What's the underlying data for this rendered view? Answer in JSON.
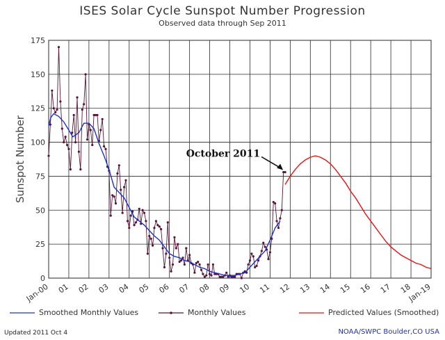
{
  "chart_data": {
    "type": "line",
    "title": "ISES Solar Cycle Sunspot Number Progression",
    "subtitle": "Observed data through Sep 2011",
    "ylabel": "Sunspot Number",
    "xlabel": "",
    "xlim": [
      2000.0,
      2019.0
    ],
    "ylim": [
      0,
      175
    ],
    "x_ticks": [
      {
        "pos": 2000.0,
        "label": "Jan-00"
      },
      {
        "pos": 2001.0,
        "label": "01"
      },
      {
        "pos": 2002.0,
        "label": "02"
      },
      {
        "pos": 2003.0,
        "label": "03"
      },
      {
        "pos": 2004.0,
        "label": "04"
      },
      {
        "pos": 2005.0,
        "label": "05"
      },
      {
        "pos": 2006.0,
        "label": "06"
      },
      {
        "pos": 2007.0,
        "label": "07"
      },
      {
        "pos": 2008.0,
        "label": "08"
      },
      {
        "pos": 2009.0,
        "label": "09"
      },
      {
        "pos": 2010.0,
        "label": "10"
      },
      {
        "pos": 2011.0,
        "label": "11"
      },
      {
        "pos": 2012.0,
        "label": "12"
      },
      {
        "pos": 2013.0,
        "label": "13"
      },
      {
        "pos": 2014.0,
        "label": "14"
      },
      {
        "pos": 2015.0,
        "label": "15"
      },
      {
        "pos": 2016.0,
        "label": "16"
      },
      {
        "pos": 2017.0,
        "label": "17"
      },
      {
        "pos": 2018.0,
        "label": "18"
      },
      {
        "pos": 2019.0,
        "label": "Jan-19"
      }
    ],
    "y_ticks": [
      0,
      25,
      50,
      75,
      100,
      125,
      150,
      175
    ],
    "grid": true,
    "annotation": {
      "text": "October 2011",
      "point": [
        2011.75,
        78
      ]
    },
    "series": [
      {
        "name": "Monthly Values",
        "color": "#5a1438",
        "x": [
          2000.0,
          2000.083,
          2000.167,
          2000.25,
          2000.333,
          2000.417,
          2000.5,
          2000.583,
          2000.667,
          2000.75,
          2000.833,
          2000.917,
          2001.0,
          2001.083,
          2001.167,
          2001.25,
          2001.333,
          2001.417,
          2001.5,
          2001.583,
          2001.667,
          2001.75,
          2001.833,
          2001.917,
          2002.0,
          2002.083,
          2002.167,
          2002.25,
          2002.333,
          2002.417,
          2002.5,
          2002.583,
          2002.667,
          2002.75,
          2002.833,
          2002.917,
          2003.0,
          2003.083,
          2003.167,
          2003.25,
          2003.333,
          2003.417,
          2003.5,
          2003.583,
          2003.667,
          2003.75,
          2003.833,
          2003.917,
          2004.0,
          2004.083,
          2004.167,
          2004.25,
          2004.333,
          2004.417,
          2004.5,
          2004.583,
          2004.667,
          2004.75,
          2004.833,
          2004.917,
          2005.0,
          2005.083,
          2005.167,
          2005.25,
          2005.333,
          2005.417,
          2005.5,
          2005.583,
          2005.667,
          2005.75,
          2005.833,
          2005.917,
          2006.0,
          2006.083,
          2006.167,
          2006.25,
          2006.333,
          2006.417,
          2006.5,
          2006.583,
          2006.667,
          2006.75,
          2006.833,
          2006.917,
          2007.0,
          2007.083,
          2007.167,
          2007.25,
          2007.333,
          2007.417,
          2007.5,
          2007.583,
          2007.667,
          2007.75,
          2007.833,
          2007.917,
          2008.0,
          2008.083,
          2008.167,
          2008.25,
          2008.333,
          2008.417,
          2008.5,
          2008.583,
          2008.667,
          2008.75,
          2008.833,
          2008.917,
          2009.0,
          2009.083,
          2009.167,
          2009.25,
          2009.333,
          2009.417,
          2009.5,
          2009.583,
          2009.667,
          2009.75,
          2009.833,
          2009.917,
          2010.0,
          2010.083,
          2010.167,
          2010.25,
          2010.333,
          2010.417,
          2010.5,
          2010.583,
          2010.667,
          2010.75,
          2010.833,
          2010.917,
          2011.0,
          2011.083,
          2011.167,
          2011.25,
          2011.333,
          2011.417,
          2011.5,
          2011.583,
          2011.667,
          2011.75
        ],
        "values": [
          90,
          113,
          138,
          125,
          122,
          124,
          170,
          130,
          110,
          100,
          104,
          98,
          95,
          80,
          107,
          120,
          100,
          133,
          93,
          80,
          124,
          128,
          150,
          102,
          113,
          109,
          98,
          120,
          120,
          120,
          101,
          109,
          117,
          97,
          95,
          82,
          79,
          46,
          61,
          60,
          55,
          77,
          83,
          65,
          48,
          67,
          72,
          42,
          37,
          46,
          49,
          39,
          41,
          43,
          51,
          40,
          50,
          48,
          42,
          18,
          31,
          29,
          24,
          37,
          42,
          39,
          38,
          36,
          22,
          8,
          18,
          41,
          15,
          5,
          10,
          30,
          22,
          25,
          12,
          13,
          15,
          10,
          22,
          13,
          17,
          11,
          10,
          4,
          11,
          12,
          10,
          6,
          3,
          1,
          2,
          10,
          3,
          2,
          10,
          3,
          3,
          3,
          1,
          1,
          1,
          2,
          4,
          1,
          2,
          1,
          1,
          1,
          3,
          3,
          3,
          0,
          4,
          5,
          4,
          10,
          13,
          18,
          16,
          8,
          9,
          13,
          16,
          20,
          26,
          23,
          21,
          14,
          19,
          29,
          56,
          55,
          42,
          37,
          44,
          50,
          78,
          78
        ]
      },
      {
        "name": "Smoothed Monthly Values",
        "color": "#1a2fd4",
        "x": [
          2000.0,
          2000.1,
          2000.25,
          2000.5,
          2000.75,
          2001.0,
          2001.2,
          2001.5,
          2001.75,
          2002.0,
          2002.25,
          2002.5,
          2002.75,
          2003.0,
          2003.25,
          2003.5,
          2003.75,
          2004.0,
          2004.25,
          2004.5,
          2004.75,
          2005.0,
          2005.25,
          2005.5,
          2005.75,
          2006.0,
          2006.25,
          2006.5,
          2006.75,
          2007.0,
          2007.25,
          2007.5,
          2007.75,
          2008.0,
          2008.25,
          2008.5,
          2008.75,
          2009.0,
          2009.25,
          2009.5,
          2009.75,
          2010.0,
          2010.25,
          2010.5,
          2010.75,
          2011.0,
          2011.25,
          2011.5
        ],
        "values": [
          112,
          118,
          121,
          119,
          115,
          109,
          104,
          107,
          114,
          114,
          110,
          99,
          90,
          80,
          67,
          63,
          59,
          52,
          45,
          42,
          39,
          35,
          31,
          28,
          23,
          18,
          16,
          15,
          13,
          12,
          10,
          8,
          7,
          5,
          4,
          3,
          2,
          2,
          2,
          3,
          4,
          8,
          12,
          16,
          20,
          28,
          37,
          42
        ]
      },
      {
        "name": "Predicted Values (Smoothed)",
        "color": "#ee1111",
        "x": [
          2011.75,
          2012.0,
          2012.25,
          2012.5,
          2012.75,
          2013.0,
          2013.25,
          2013.5,
          2013.75,
          2014.0,
          2014.25,
          2014.5,
          2014.75,
          2015.0,
          2015.25,
          2015.5,
          2015.75,
          2016.0,
          2016.25,
          2016.5,
          2016.75,
          2017.0,
          2017.25,
          2017.5,
          2017.75,
          2018.0,
          2018.25,
          2018.5,
          2018.75,
          2019.0
        ],
        "values": [
          69,
          75,
          80,
          84,
          87,
          89,
          90,
          89,
          87,
          84,
          80,
          75,
          70,
          64,
          59,
          53,
          47,
          42,
          37,
          32,
          27,
          23,
          20,
          17,
          15,
          13,
          11,
          10,
          8,
          7
        ]
      }
    ]
  },
  "legend": {
    "smoothed": "Smoothed Monthly Values",
    "monthly": "Monthly Values",
    "predicted": "Predicted Values (Smoothed)"
  },
  "footer": {
    "updated": "Updated 2011 Oct  4",
    "credit": "NOAA/SWPC Boulder,CO USA"
  },
  "colors": {
    "grid": "#2a2a2a",
    "monthly": "#5a1438",
    "smoothed": "#1a2fd4",
    "predicted": "#ee1111"
  }
}
